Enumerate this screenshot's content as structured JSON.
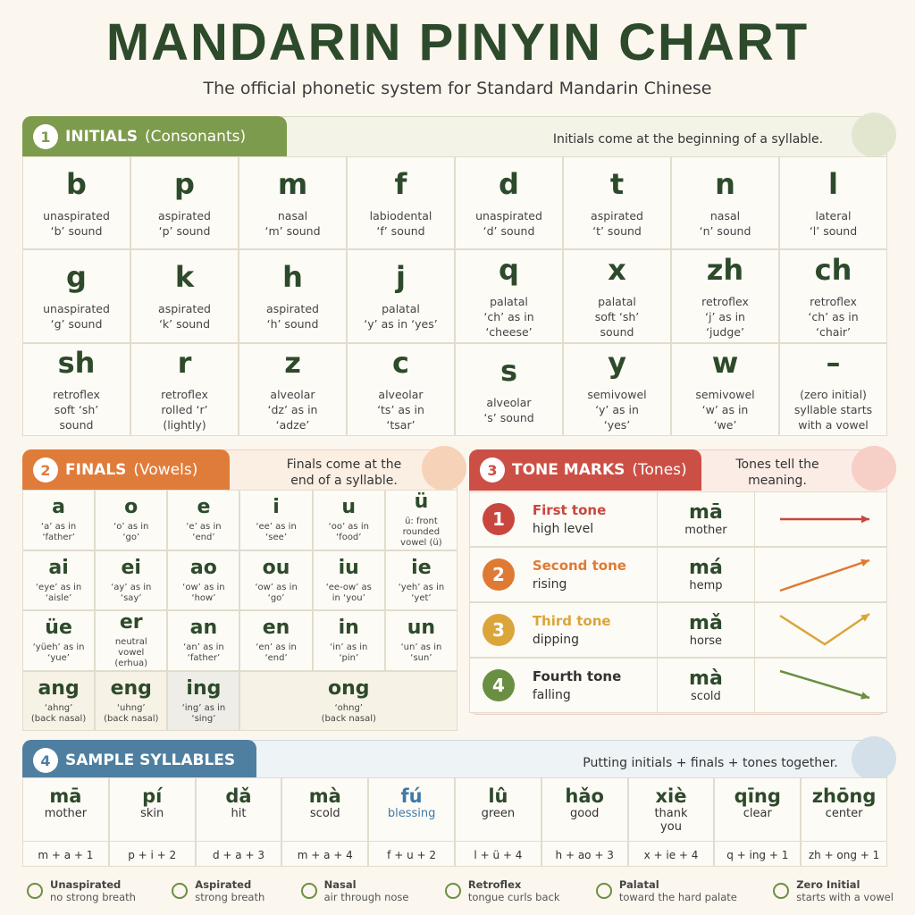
{
  "header": {
    "title": "MANDARIN PINYIN CHART",
    "subtitle": "The official phonetic system for Standard Mandarin Chinese"
  },
  "initials": {
    "number": "1",
    "title": "INITIALS",
    "subtitle": "(Consonants)",
    "note": [
      "Initials come at the beginning of a syllable."
    ],
    "cells": [
      {
        "letter": "b",
        "lines": [
          "unaspirated",
          "‘b’ sound"
        ]
      },
      {
        "letter": "p",
        "lines": [
          "aspirated",
          "‘p’ sound"
        ]
      },
      {
        "letter": "m",
        "lines": [
          "nasal",
          "‘m’ sound"
        ]
      },
      {
        "letter": "f",
        "lines": [
          "labiodental",
          "‘f’ sound"
        ]
      },
      {
        "letter": "d",
        "lines": [
          "unaspirated",
          "‘d’ sound"
        ]
      },
      {
        "letter": "t",
        "lines": [
          "aspirated",
          "‘t’ sound"
        ]
      },
      {
        "letter": "n",
        "lines": [
          "nasal",
          "‘n’ sound"
        ]
      },
      {
        "letter": "l",
        "lines": [
          "lateral",
          "‘l’ sound"
        ]
      },
      {
        "letter": "g",
        "lines": [
          "unaspirated",
          "‘g’ sound"
        ]
      },
      {
        "letter": "k",
        "lines": [
          "aspirated",
          "‘k’ sound"
        ]
      },
      {
        "letter": "h",
        "lines": [
          "aspirated",
          "‘h’ sound"
        ]
      },
      {
        "letter": "j",
        "lines": [
          "palatal",
          "‘y’ as in ‘yes’"
        ]
      },
      {
        "letter": "q",
        "lines": [
          "palatal",
          "‘ch’ as in",
          "‘cheese’"
        ]
      },
      {
        "letter": "x",
        "lines": [
          "palatal",
          "soft ‘sh’",
          "sound"
        ]
      },
      {
        "letter": "zh",
        "lines": [
          "retroflex",
          "‘j’ as in",
          "‘judge’"
        ]
      },
      {
        "letter": "ch",
        "lines": [
          "retroflex",
          "‘ch’ as in",
          "‘chair’"
        ]
      },
      {
        "letter": "sh",
        "lines": [
          "retroflex",
          "soft ‘sh’",
          "sound"
        ]
      },
      {
        "letter": "r",
        "lines": [
          "retroflex",
          "rolled ‘r’",
          "(lightly)"
        ]
      },
      {
        "letter": "z",
        "lines": [
          "alveolar",
          "‘dz’ as in",
          "‘adze’"
        ]
      },
      {
        "letter": "c",
        "lines": [
          "alveolar",
          "‘ts’ as in",
          "‘tsar’"
        ]
      },
      {
        "letter": "s",
        "lines": [
          "alveolar",
          "‘s’ sound"
        ]
      },
      {
        "letter": "y",
        "lines": [
          "semivowel",
          "‘y’ as in",
          "‘yes’"
        ]
      },
      {
        "letter": "w",
        "lines": [
          "semivowel",
          "‘w’ as in",
          "‘we’"
        ]
      },
      {
        "letter": "–",
        "lines": [
          "(zero initial)",
          "syllable starts",
          "with a vowel"
        ]
      }
    ]
  },
  "finals": {
    "number": "2",
    "title": "FINALS",
    "subtitle": "(Vowels)",
    "note": [
      "Finals come at the",
      "end of a syllable."
    ],
    "cells": [
      {
        "letter": "a",
        "lines": [
          "‘a’ as in",
          "‘father’"
        ]
      },
      {
        "letter": "o",
        "lines": [
          "‘o’ as in",
          "‘go’"
        ]
      },
      {
        "letter": "e",
        "lines": [
          "‘e’ as in",
          "‘end’"
        ]
      },
      {
        "letter": "i",
        "lines": [
          "‘ee’ as in",
          "‘see’"
        ]
      },
      {
        "letter": "u",
        "lines": [
          "‘oo’ as in",
          "‘food’"
        ]
      },
      {
        "letter": "ü",
        "lines": [
          "ü: front",
          "rounded",
          "vowel (ü)"
        ]
      },
      {
        "letter": "ai",
        "lines": [
          "‘eye’ as in",
          "‘aisle’"
        ]
      },
      {
        "letter": "ei",
        "lines": [
          "‘ay’ as in",
          "‘say’"
        ]
      },
      {
        "letter": "ao",
        "lines": [
          "‘ow’ as in",
          "‘how’"
        ]
      },
      {
        "letter": "ou",
        "lines": [
          "‘ow’ as in",
          "‘go’"
        ]
      },
      {
        "letter": "iu",
        "lines": [
          "‘ee-ow’ as",
          "in ‘you’"
        ]
      },
      {
        "letter": "ie",
        "lines": [
          "‘yeh’ as in",
          "‘yet’"
        ]
      },
      {
        "letter": "üe",
        "lines": [
          "‘yüeh’ as in",
          "‘yue’"
        ]
      },
      {
        "letter": "er",
        "lines": [
          "neutral",
          "vowel",
          "(erhua)"
        ]
      },
      {
        "letter": "an",
        "lines": [
          "‘an’ as in",
          "‘father’"
        ]
      },
      {
        "letter": "en",
        "lines": [
          "‘en’ as in",
          "‘end’"
        ]
      },
      {
        "letter": "in",
        "lines": [
          "‘in’ as in",
          "‘pin’"
        ]
      },
      {
        "letter": "un",
        "lines": [
          "‘un’ as in",
          "‘sun’"
        ]
      },
      {
        "letter": "ang",
        "lines": [
          "‘ahng’",
          "(back nasal)"
        ]
      },
      {
        "letter": "eng",
        "lines": [
          "‘uhng’",
          "(back nasal)"
        ]
      },
      {
        "letter": "ing",
        "lines": [
          "‘ing’ as in",
          "‘sing’"
        ]
      },
      {
        "letter": "ong",
        "lines": [
          "‘ohng’",
          "(back nasal)"
        ]
      }
    ]
  },
  "tones": {
    "number": "3",
    "title": "TONE MARKS",
    "subtitle": "(Tones)",
    "note": [
      "Tones tell the meaning."
    ],
    "rows": [
      {
        "number": "1",
        "name": "First tone",
        "desc": "high level",
        "syllable": "mā",
        "meaning": "mother"
      },
      {
        "number": "2",
        "name": "Second tone",
        "desc": "rising",
        "syllable": "má",
        "meaning": "hemp"
      },
      {
        "number": "3",
        "name": "Third tone",
        "desc": "dipping",
        "syllable": "mǎ",
        "meaning": "horse"
      },
      {
        "number": "4",
        "name": "Fourth tone",
        "desc": "falling",
        "syllable": "mà",
        "meaning": "scold"
      }
    ]
  },
  "samples": {
    "number": "4",
    "title": "SAMPLE SYLLABLES",
    "note": [
      "Putting initials + finals + tones together."
    ],
    "items": [
      {
        "syllable": "mā",
        "meaning": [
          "mother"
        ],
        "formula": "m + a + 1"
      },
      {
        "syllable": "pí",
        "meaning": [
          "skin"
        ],
        "formula": "p + i + 2"
      },
      {
        "syllable": "dǎ",
        "meaning": [
          "hit"
        ],
        "formula": "d + a + 3"
      },
      {
        "syllable": "mà",
        "meaning": [
          "scold"
        ],
        "formula": "m + a + 4"
      },
      {
        "syllable": "fú",
        "meaning": [
          "blessing"
        ],
        "formula": "f + u + 2"
      },
      {
        "syllable": "lû",
        "meaning": [
          "green"
        ],
        "formula": "l + ü + 4"
      },
      {
        "syllable": "hǎo",
        "meaning": [
          "good"
        ],
        "formula": "h + ao + 3"
      },
      {
        "syllable": "xiè",
        "meaning": [
          "thank",
          "you"
        ],
        "formula": "x + ie + 4"
      },
      {
        "syllable": "qīng",
        "meaning": [
          "clear"
        ],
        "formula": "q + ing + 1"
      },
      {
        "syllable": "zhōng",
        "meaning": [
          "center"
        ],
        "formula": "zh + ong + 1"
      }
    ]
  },
  "legend": [
    {
      "title": "Unaspirated",
      "desc": "no strong breath"
    },
    {
      "title": "Aspirated",
      "desc": "strong breath"
    },
    {
      "title": "Nasal",
      "desc": "air through nose"
    },
    {
      "title": "Retroflex",
      "desc": "tongue curls back"
    },
    {
      "title": "Palatal",
      "desc": "toward the hard palate"
    },
    {
      "title": "Zero Initial",
      "desc": "starts with a vowel"
    }
  ]
}
